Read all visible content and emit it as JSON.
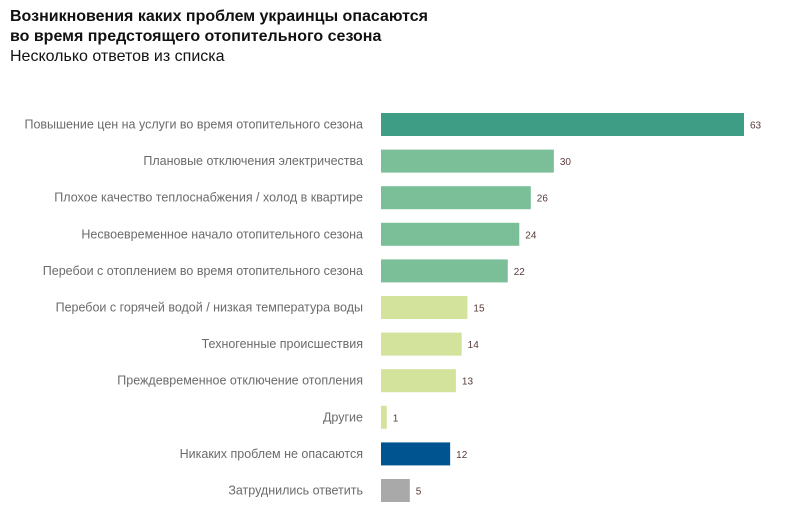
{
  "header": {
    "title_line1": "Возникновения каких проблем украинцы опасаются",
    "title_line2": "во время предстоящего отопительного сезона",
    "subtitle": "Несколько ответов из списка"
  },
  "colors": {
    "dark_green": "#3e9e85",
    "green": "#7bbf99",
    "light_green": "#d3e39c",
    "blue": "#005590",
    "gray": "#a9a9a9"
  },
  "chart_data": {
    "type": "bar",
    "orientation": "horizontal",
    "title": "Возникновения каких проблем украинцы опасаются во время предстоящего отопительного сезона",
    "subtitle": "Несколько ответов из списка",
    "xlabel": "",
    "ylabel": "",
    "xlim": [
      0,
      63
    ],
    "grid": false,
    "legend": "none",
    "categories": [
      "Повышение цен на услуги во время отопительного сезона",
      "Плановые отключения электричества",
      "Плохое качество теплоснабжения / холод в квартире",
      "Несвоевременное  начало отопительного сезона",
      "Перебои с отоплением во время отопительного сезона",
      "Перебои с горячей водой / низкая температура воды",
      "Техногенные происшествия",
      "Преждевременное отключение отопления",
      "Другие",
      "Никаких проблем не опасаются",
      "Затруднились ответить"
    ],
    "values": [
      63,
      30,
      26,
      24,
      22,
      15,
      14,
      13,
      1,
      12,
      5
    ],
    "bar_colors": [
      "dark_green",
      "green",
      "green",
      "green",
      "green",
      "light_green",
      "light_green",
      "light_green",
      "light_green",
      "blue",
      "gray"
    ]
  }
}
